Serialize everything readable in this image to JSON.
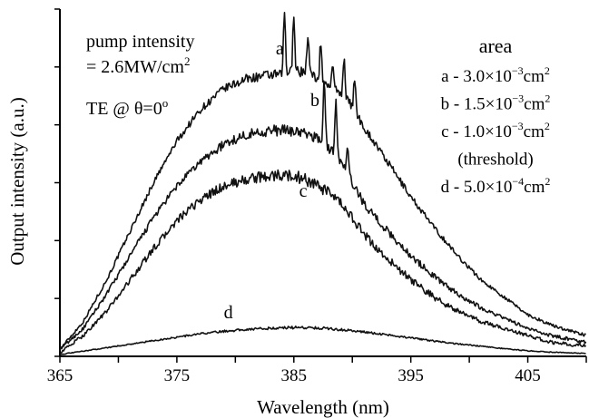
{
  "chart_data": {
    "type": "line",
    "xlabel": "Wavelength (nm)",
    "ylabel": "Output intensity (a.u.)",
    "xlim": [
      365,
      410
    ],
    "ylim": [
      0,
      1.0
    ],
    "x_ticks": [
      "365",
      "375",
      "385",
      "395",
      "405"
    ],
    "y_ticks_labeled": false,
    "grid": false,
    "annotations": {
      "pump_line1": "pump intensity",
      "pump_line2_prefix": "= 2.6MW/cm",
      "pump_line2_sup": "2",
      "te_prefix": "TE @ θ=0",
      "te_sup": "o"
    },
    "legend": {
      "title": "area",
      "placement": "right",
      "entries": [
        {
          "letter": "a",
          "text": "a - 3.0×10",
          "exp": "−3",
          "unit": "cm",
          "unit_exp": "2"
        },
        {
          "letter": "b",
          "text": "b - 1.5×10",
          "exp": "−3",
          "unit": "cm",
          "unit_exp": "2"
        },
        {
          "letter": "c",
          "text": "c - 1.0×10",
          "exp": "−3",
          "unit": "cm",
          "unit_exp": "2"
        },
        {
          "letter": "",
          "text": "(threshold)",
          "exp": "",
          "unit": "",
          "unit_exp": ""
        },
        {
          "letter": "d",
          "text": "d - 5.0×10",
          "exp": "−4",
          "unit": "cm",
          "unit_exp": "2"
        }
      ]
    },
    "x": [
      365,
      367,
      369,
      371,
      373,
      375,
      377,
      379,
      381,
      383,
      384,
      385,
      386,
      387,
      388,
      389,
      390,
      391,
      393,
      395,
      397,
      399,
      401,
      403,
      405,
      407,
      410
    ],
    "series": [
      {
        "name": "a",
        "label_at": [
          383.8,
          0.87
        ],
        "values": [
          0.02,
          0.1,
          0.22,
          0.36,
          0.5,
          0.62,
          0.71,
          0.77,
          0.8,
          0.81,
          0.81,
          0.82,
          0.82,
          0.8,
          0.78,
          0.76,
          0.72,
          0.66,
          0.56,
          0.46,
          0.37,
          0.29,
          0.22,
          0.17,
          0.12,
          0.09,
          0.06
        ],
        "peaks": [
          [
            384.2,
            0.99
          ],
          [
            385.0,
            0.99
          ],
          [
            386.2,
            0.93
          ],
          [
            387.3,
            0.9
          ],
          [
            388.3,
            0.84
          ],
          [
            389.3,
            0.86
          ],
          [
            390.2,
            0.8
          ]
        ]
      },
      {
        "name": "b",
        "label_at": [
          386.8,
          0.72
        ],
        "values": [
          0.02,
          0.08,
          0.18,
          0.29,
          0.4,
          0.49,
          0.56,
          0.61,
          0.64,
          0.65,
          0.65,
          0.65,
          0.64,
          0.63,
          0.6,
          0.56,
          0.5,
          0.44,
          0.36,
          0.29,
          0.23,
          0.18,
          0.14,
          0.11,
          0.08,
          0.06,
          0.04
        ],
        "peaks": [
          [
            387.6,
            0.8
          ],
          [
            388.6,
            0.75
          ],
          [
            389.6,
            0.6
          ]
        ]
      },
      {
        "name": "c",
        "label_at": [
          385.8,
          0.46
        ],
        "values": [
          0.01,
          0.06,
          0.13,
          0.22,
          0.31,
          0.39,
          0.45,
          0.49,
          0.51,
          0.52,
          0.52,
          0.52,
          0.51,
          0.49,
          0.47,
          0.44,
          0.4,
          0.35,
          0.28,
          0.22,
          0.17,
          0.13,
          0.1,
          0.08,
          0.06,
          0.04,
          0.03
        ],
        "peaks": []
      },
      {
        "name": "d",
        "label_at": [
          379.4,
          0.11
        ],
        "values": [
          0.005,
          0.015,
          0.025,
          0.035,
          0.045,
          0.055,
          0.065,
          0.072,
          0.078,
          0.081,
          0.082,
          0.083,
          0.083,
          0.082,
          0.08,
          0.077,
          0.074,
          0.07,
          0.062,
          0.053,
          0.044,
          0.036,
          0.029,
          0.022,
          0.016,
          0.012,
          0.008
        ],
        "peaks": []
      }
    ]
  }
}
